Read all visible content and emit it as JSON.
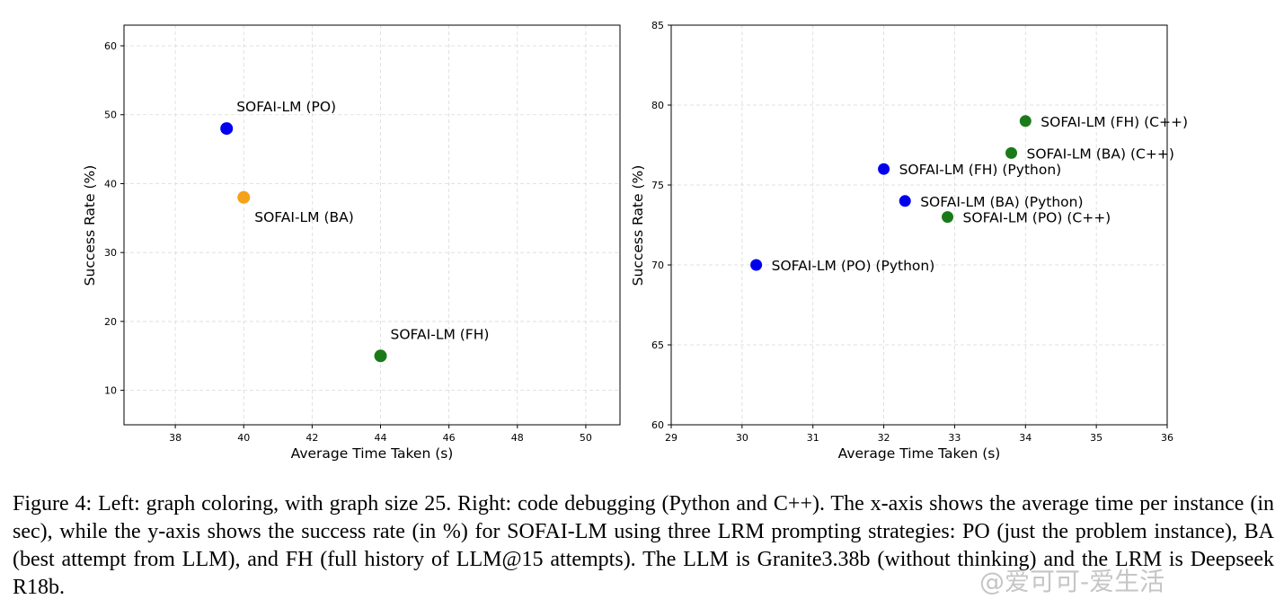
{
  "chart_data": [
    {
      "type": "scatter",
      "xlabel": "Average Time Taken (s)",
      "ylabel": "Success Rate (%)",
      "xlim": [
        36.5,
        51
      ],
      "ylim": [
        5,
        63
      ],
      "xticks": [
        38,
        40,
        42,
        44,
        46,
        48,
        50
      ],
      "yticks": [
        10,
        20,
        30,
        40,
        50,
        60
      ],
      "grid": true,
      "points": [
        {
          "label": "SOFAI-LM (PO)",
          "x": 39.5,
          "y": 48,
          "color": "#0000ee",
          "label_pos": "above-right"
        },
        {
          "label": "SOFAI-LM (BA)",
          "x": 40.0,
          "y": 38,
          "color": "#f5a11c",
          "label_pos": "below-right"
        },
        {
          "label": "SOFAI-LM (FH)",
          "x": 44.0,
          "y": 15,
          "color": "#1a7a1a",
          "label_pos": "above-right"
        }
      ]
    },
    {
      "type": "scatter",
      "xlabel": "Average Time Taken (s)",
      "ylabel": "Success Rate (%)",
      "xlim": [
        29,
        36
      ],
      "ylim": [
        60,
        85
      ],
      "xticks": [
        29,
        30,
        31,
        32,
        33,
        34,
        35,
        36
      ],
      "yticks": [
        60,
        65,
        70,
        75,
        80,
        85
      ],
      "grid": true,
      "points": [
        {
          "label": "SOFAI-LM (PO) (Python)",
          "x": 30.2,
          "y": 70,
          "color": "#0000ee",
          "label_pos": "right"
        },
        {
          "label": "SOFAI-LM (FH) (Python)",
          "x": 32.0,
          "y": 76,
          "color": "#0000ee",
          "label_pos": "right"
        },
        {
          "label": "SOFAI-LM (BA) (Python)",
          "x": 32.3,
          "y": 74,
          "color": "#0000ee",
          "label_pos": "right"
        },
        {
          "label": "SOFAI-LM (PO) (C++)",
          "x": 32.9,
          "y": 73,
          "color": "#1a7a1a",
          "label_pos": "right"
        },
        {
          "label": "SOFAI-LM (BA) (C++)",
          "x": 33.8,
          "y": 77,
          "color": "#1a7a1a",
          "label_pos": "right"
        },
        {
          "label": "SOFAI-LM (FH) (C++)",
          "x": 34.0,
          "y": 79,
          "color": "#1a7a1a",
          "label_pos": "right"
        }
      ]
    }
  ],
  "caption": "Figure 4: Left: graph coloring, with graph size 25. Right: code debugging (Python and C++). The x-axis shows the average time per instance (in sec), while the y-axis shows the success rate (in %) for SOFAI-LM using three LRM prompting strategies: PO (just the problem instance), BA (best attempt from LLM), and FH (full history of LLM@15 attempts). The LLM is Granite3.38b (without thinking) and the LRM is Deepseek R18b.",
  "watermark": "@爱可可-爱生活"
}
